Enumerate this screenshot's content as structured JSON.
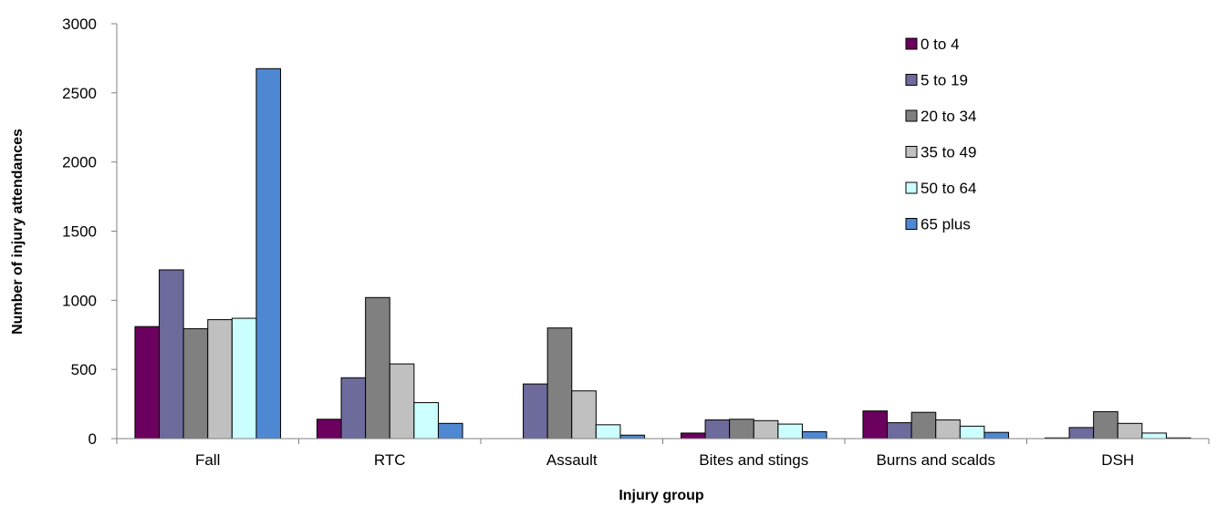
{
  "chart_data": {
    "type": "bar",
    "title": "",
    "xlabel": "Injury group",
    "ylabel": "Number of injury attendances",
    "ylim": [
      0,
      3000
    ],
    "yticks": [
      0,
      500,
      1000,
      1500,
      2000,
      2500,
      3000
    ],
    "grid": false,
    "legend_position": "top-right",
    "categories": [
      "Fall",
      "RTC",
      "Assault",
      "Bites and stings",
      "Burns and scalds",
      "DSH"
    ],
    "series": [
      {
        "name": "0 to 4",
        "color": "#6B005E",
        "values": [
          810,
          140,
          0,
          40,
          200,
          5
        ]
      },
      {
        "name": "5 to 19",
        "color": "#6D6A9C",
        "values": [
          1220,
          440,
          395,
          135,
          115,
          80
        ]
      },
      {
        "name": "20 to 34",
        "color": "#808080",
        "values": [
          795,
          1020,
          800,
          140,
          190,
          195
        ]
      },
      {
        "name": "35 to 49",
        "color": "#C0C0C0",
        "values": [
          860,
          540,
          345,
          130,
          135,
          110
        ]
      },
      {
        "name": "50 to 64",
        "color": "#CCFFFF",
        "values": [
          870,
          260,
          100,
          105,
          90,
          40
        ]
      },
      {
        "name": "65 plus",
        "color": "#4F88D2",
        "values": [
          2675,
          110,
          25,
          50,
          45,
          5
        ]
      }
    ]
  }
}
